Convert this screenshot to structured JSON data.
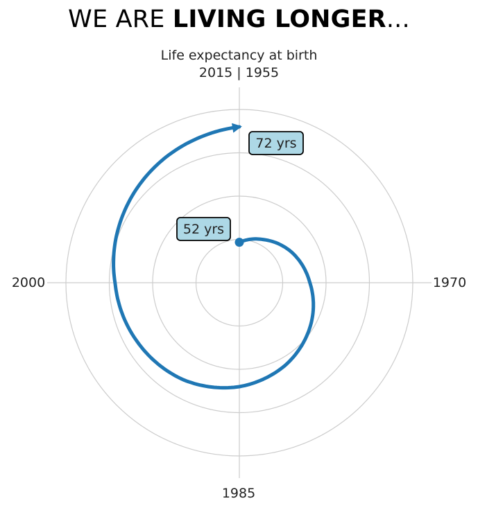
{
  "title": {
    "normal": "WE ARE ",
    "bold": "LIVING LONGER",
    "suffix": "..."
  },
  "subtitle": {
    "line1": "Life expectancy at birth",
    "line2": "2015 | 1955"
  },
  "chart_data": {
    "type": "line",
    "projection": "polar",
    "title": "WE ARE LIVING LONGER...",
    "subtitle": "Life expectancy at birth",
    "angular_tick_labels": [
      "2015 | 1955",
      "1970",
      "1985",
      "2000"
    ],
    "radial_grid": true,
    "series": [
      {
        "x": [
          1955,
          1960,
          1965,
          1970,
          1975,
          1980,
          1985,
          1990,
          1995,
          2000,
          2005,
          2010,
          2015
        ],
        "y": [
          52,
          53.6,
          55.5,
          57.2,
          59.3,
          61.3,
          63,
          64.4,
          65.4,
          66.5,
          68.3,
          70.2,
          72
        ]
      }
    ],
    "annotations": [
      {
        "label": "52 yrs",
        "x": 1955,
        "y": 52
      },
      {
        "label": "72 yrs",
        "x": 2015,
        "y": 72
      }
    ],
    "colors": {
      "line": "#1f77b4",
      "label_box": "#add8e6",
      "grid": "#cccccc"
    }
  }
}
